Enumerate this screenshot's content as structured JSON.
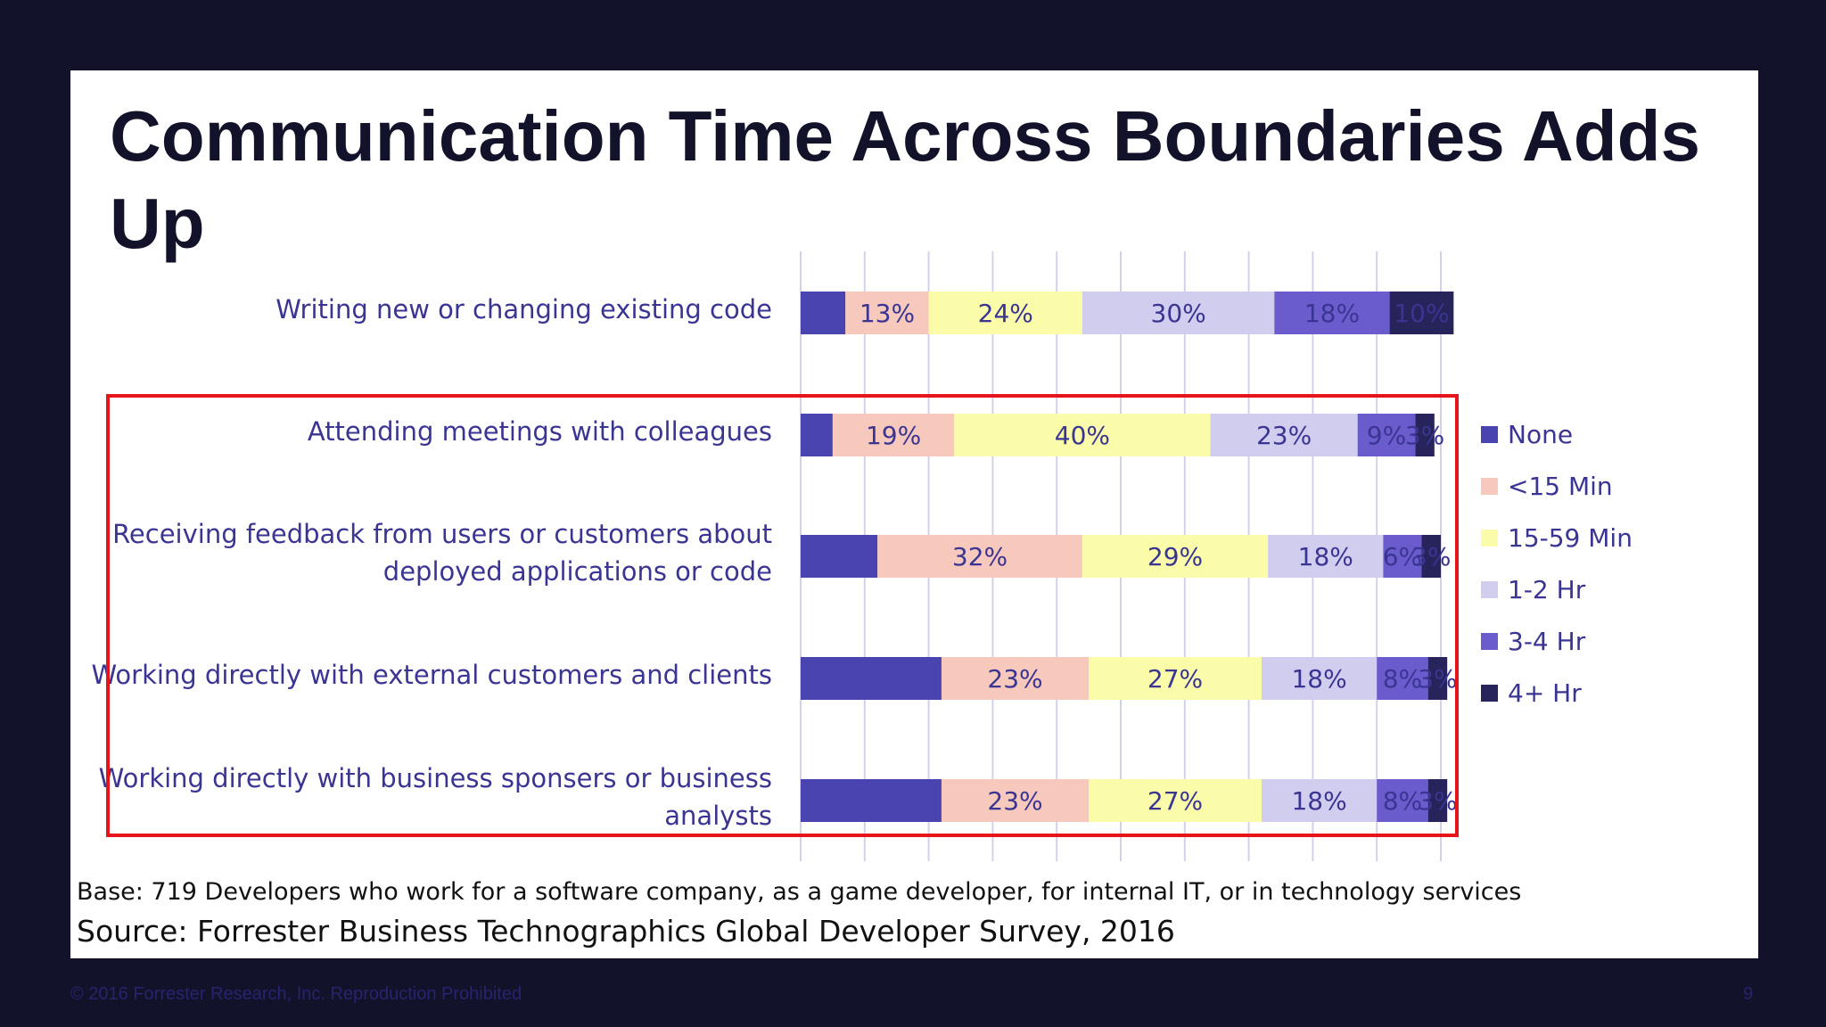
{
  "slide": {
    "title": "Communication Time Across Boundaries Adds Up",
    "base_note": "Base: 719 Developers who work for a software company, as a game developer, for internal IT, or in technology services",
    "source_note": "Source: Forrester Business Technographics Global Developer Survey, 2016",
    "footer_copyright": "© 2016 Forrester Research, Inc. Reproduction Prohibited",
    "page_number": "9",
    "highlight_color": "#e8141b"
  },
  "chart_data": {
    "type": "bar",
    "orientation": "horizontal",
    "stacked": true,
    "percent_stacked": true,
    "categories": [
      "Writing new or changing existing code",
      "Attending meetings with colleagues",
      "Receiving feedback from users or customers about deployed applications or code",
      "Working directly with external customers and clients",
      "Working directly with business sponsers or business analysts"
    ],
    "series": [
      {
        "name": "None",
        "color": "#4a44b0",
        "values": [
          7,
          5,
          12,
          22,
          22
        ],
        "labels": [
          "",
          "",
          "",
          "",
          ""
        ],
        "label_color": "#3a3592"
      },
      {
        "name": "<15 Min",
        "color": "#f7c9bd",
        "values": [
          13,
          19,
          32,
          23,
          23
        ],
        "labels": [
          "13%",
          "19%",
          "32%",
          "23%",
          "23%"
        ],
        "label_color": "#3a3592"
      },
      {
        "name": "15-59 Min",
        "color": "#fafcaa",
        "values": [
          24,
          40,
          29,
          27,
          27
        ],
        "labels": [
          "24%",
          "40%",
          "29%",
          "27%",
          "27%"
        ],
        "label_color": "#3a3592"
      },
      {
        "name": "1-2 Hr",
        "color": "#d0cdee",
        "values": [
          30,
          23,
          18,
          18,
          18
        ],
        "labels": [
          "30%",
          "23%",
          "18%",
          "18%",
          "18%"
        ],
        "label_color": "#3a3592"
      },
      {
        "name": "3-4 Hr",
        "color": "#6a5ccc",
        "values": [
          18,
          9,
          6,
          8,
          8
        ],
        "labels": [
          "18%",
          "9%",
          "6%",
          "8%",
          "8%"
        ],
        "label_color": "#3a3592"
      },
      {
        "name": "4+ Hr",
        "color": "#27245c",
        "values": [
          10,
          3,
          3,
          3,
          3
        ],
        "labels": [
          "10%",
          "3%",
          "3%",
          "3%",
          "3%"
        ],
        "label_color": "#3a3592"
      }
    ],
    "xlim": [
      0,
      100
    ],
    "grid": true,
    "legend_position": "right",
    "highlighted_categories": [
      1,
      2,
      3,
      4
    ]
  }
}
